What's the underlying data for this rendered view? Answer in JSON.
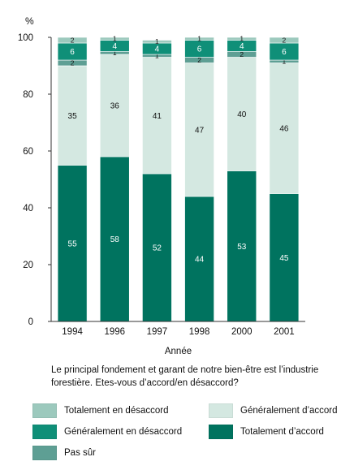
{
  "chart_data": {
    "type": "bar",
    "stacked": true,
    "y_unit_label": "%",
    "xlabel": "Année",
    "ylim": [
      0,
      100
    ],
    "yticks": [
      0,
      20,
      40,
      60,
      80,
      100
    ],
    "categories": [
      "1994",
      "1996",
      "1997",
      "1998",
      "2000",
      "2001"
    ],
    "series": [
      {
        "name": "Totalement d’accord",
        "color": "#00735f",
        "label_color": "#ffffff",
        "values": [
          55,
          58,
          52,
          44,
          53,
          45
        ]
      },
      {
        "name": "Généralement d’accord",
        "color": "#d4e8e1",
        "label_color": "#111111",
        "values": [
          35,
          36,
          41,
          47,
          40,
          46
        ]
      },
      {
        "name": "Pas sûr",
        "color": "#5e9f94",
        "label_color": "#111111",
        "values": [
          2,
          1,
          1,
          2,
          2,
          1
        ]
      },
      {
        "name": "Généralement en désaccord",
        "color": "#0f8f78",
        "label_color": "#ffffff",
        "values": [
          6,
          4,
          4,
          6,
          4,
          6
        ]
      },
      {
        "name": "Totalement en désaccord",
        "color": "#9cc9bd",
        "label_color": "#111111",
        "values": [
          2,
          1,
          1,
          1,
          1,
          2
        ]
      }
    ]
  },
  "caption": "Le principal fondement et garant de notre bien-être est l’industrie forestière. Etes-vous d’accord/en désaccord?",
  "legend": [
    {
      "label": "Totalement en désaccord",
      "color": "#9cc9bd"
    },
    {
      "label": "Généralement d’accord",
      "color": "#d4e8e1"
    },
    {
      "label": "Généralement en désaccord",
      "color": "#0f8f78"
    },
    {
      "label": "Totalement d’accord",
      "color": "#00735f"
    },
    {
      "label": "Pas sûr",
      "color": "#5e9f94"
    }
  ]
}
